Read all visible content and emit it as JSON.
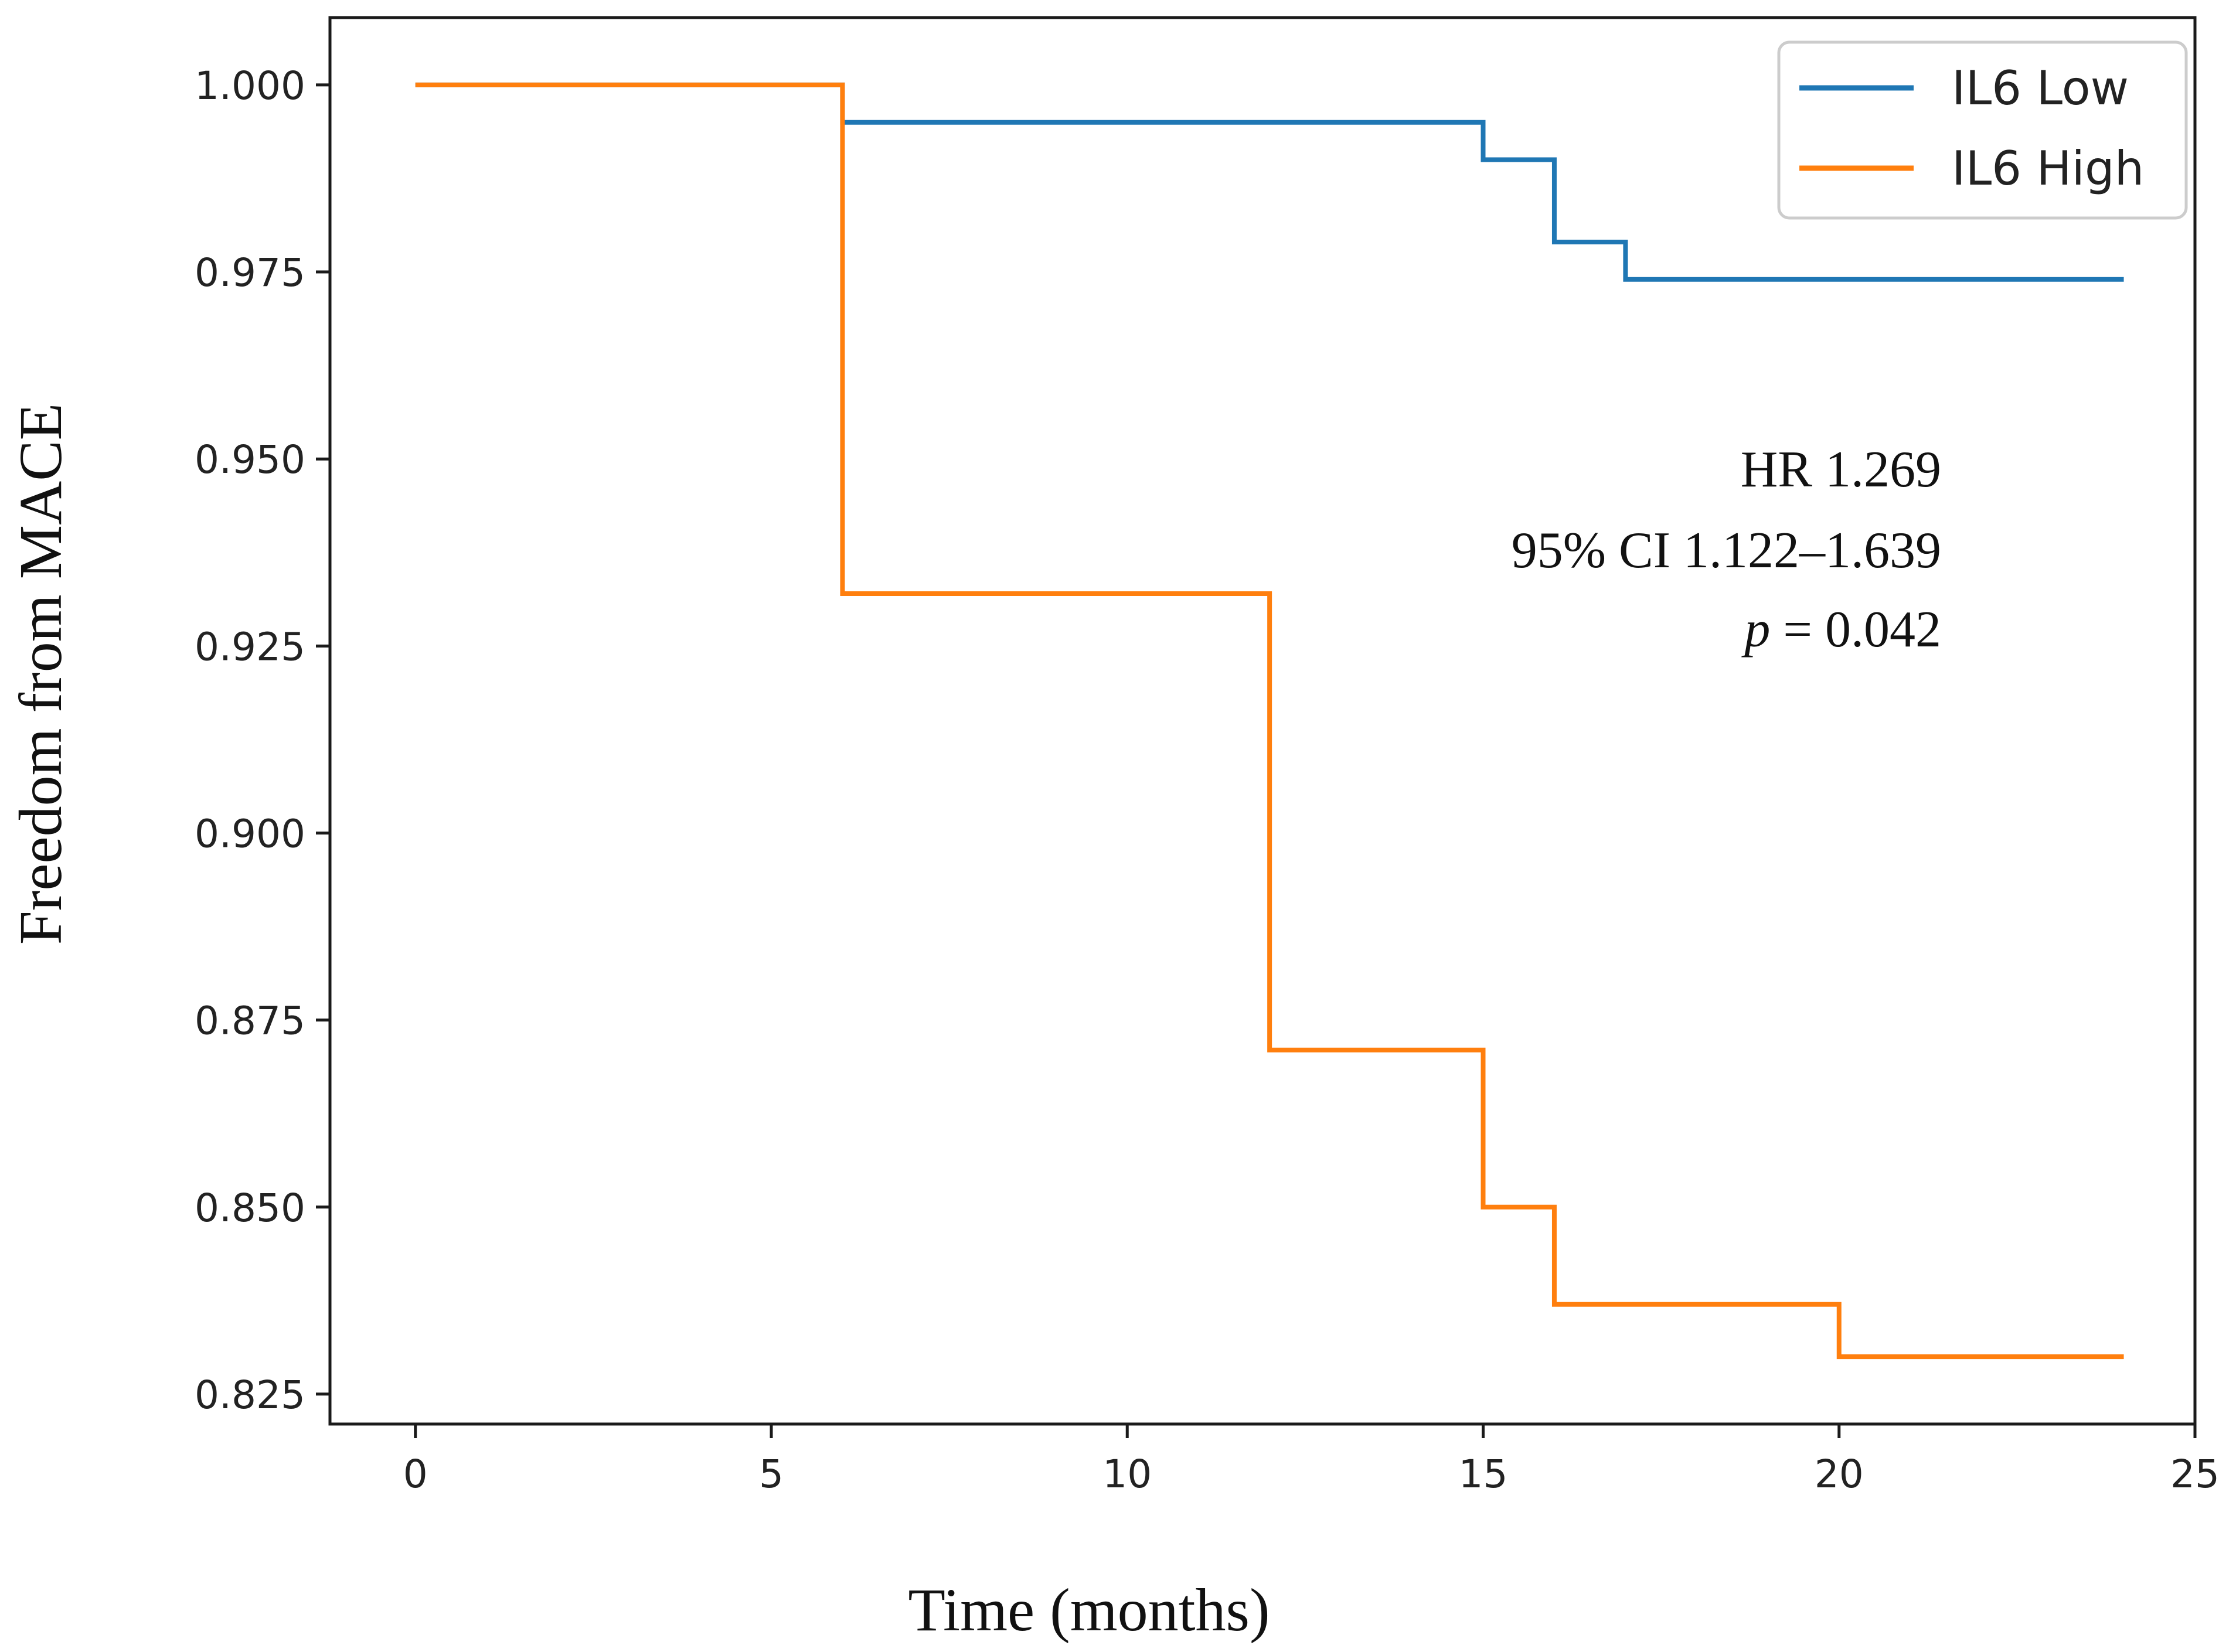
{
  "chart_data": {
    "type": "line",
    "step": true,
    "title": "",
    "xlabel": "Time (months)",
    "ylabel": "Freedom from MACE",
    "xlim": [
      -1.2,
      25.0
    ],
    "ylim": [
      0.821,
      1.009
    ],
    "xticks": [
      0,
      5,
      10,
      15,
      20,
      25
    ],
    "yticks": [
      1.0,
      0.975,
      0.95,
      0.925,
      0.9,
      0.875,
      0.85,
      0.825
    ],
    "ytick_labels": [
      "1.000",
      "0.975",
      "0.950",
      "0.925",
      "0.900",
      "0.875",
      "0.850",
      "0.825"
    ],
    "legend_position": "top-right",
    "series": [
      {
        "name": "IL6 Low",
        "color": "#1f77b4",
        "x": [
          0,
          6,
          15,
          16,
          17,
          24
        ],
        "y": [
          1.0,
          0.995,
          0.99,
          0.979,
          0.974,
          0.974
        ]
      },
      {
        "name": "IL6 High",
        "color": "#ff7f0e",
        "x": [
          0,
          6,
          12,
          15,
          16,
          20,
          24
        ],
        "y": [
          1.0,
          0.932,
          0.871,
          0.85,
          0.837,
          0.83,
          0.83
        ]
      }
    ],
    "annotations": {
      "hr": "HR 1.269",
      "ci": "95% CI 1.122–1.639",
      "p_symbol": "p",
      "p_value": " = 0.042"
    }
  }
}
